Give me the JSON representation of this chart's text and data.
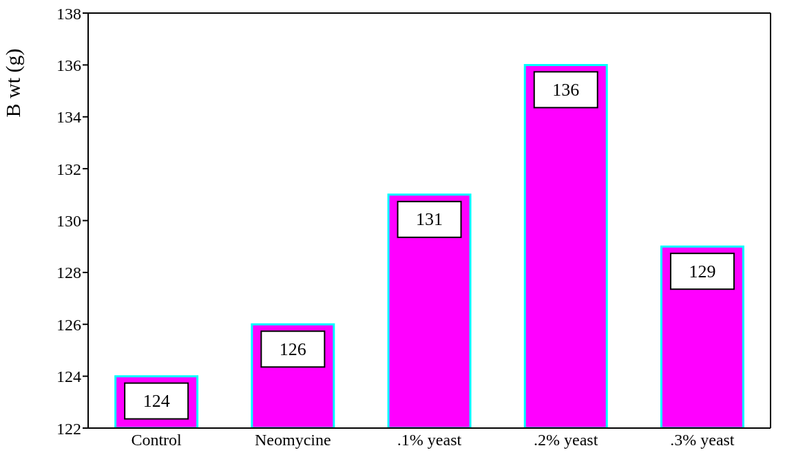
{
  "chart_data": {
    "type": "bar",
    "ylabel": "B wt (g)",
    "categories": [
      "Control",
      "Neomycine",
      ".1% yeast",
      ".2% yeast",
      ".3% yeast"
    ],
    "values": [
      124,
      126,
      131,
      136,
      129
    ],
    "color": "#ff00ff",
    "ylim": [
      122,
      138
    ],
    "yticks": [
      122,
      124,
      126,
      128,
      130,
      132,
      134,
      136,
      138
    ],
    "data_labels": true,
    "grid": false
  }
}
